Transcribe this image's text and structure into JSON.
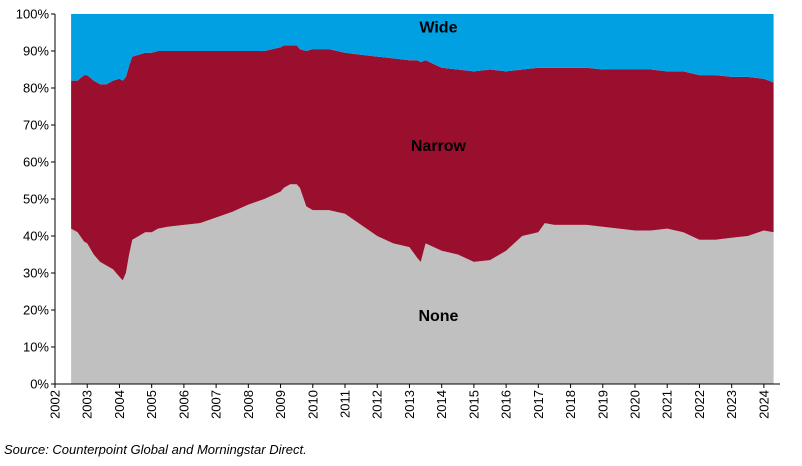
{
  "chart_data": {
    "type": "area",
    "stacked": true,
    "x": [
      2002.5,
      2002.7,
      2002.9,
      2003.0,
      2003.2,
      2003.4,
      2003.6,
      2003.8,
      2004.0,
      2004.1,
      2004.2,
      2004.3,
      2004.4,
      2004.6,
      2004.8,
      2005.0,
      2005.2,
      2005.5,
      2006.0,
      2006.5,
      2007.0,
      2007.5,
      2008.0,
      2008.5,
      2009.0,
      2009.1,
      2009.3,
      2009.5,
      2009.6,
      2009.8,
      2010.0,
      2010.5,
      2011.0,
      2011.5,
      2012.0,
      2012.5,
      2013.0,
      2013.25,
      2013.35,
      2013.5,
      2014.0,
      2014.5,
      2015.0,
      2015.5,
      2016.0,
      2016.5,
      2017.0,
      2017.2,
      2017.5,
      2018.0,
      2018.5,
      2019.0,
      2019.5,
      2020.0,
      2020.5,
      2021.0,
      2021.5,
      2022.0,
      2022.5,
      2023.0,
      2023.5,
      2024.0,
      2024.3
    ],
    "series": [
      {
        "name": "None",
        "values": [
          42,
          41,
          38.5,
          38,
          35,
          33,
          32,
          31,
          29,
          28,
          30,
          35,
          39,
          40,
          41,
          41,
          42,
          42.5,
          43,
          43.5,
          45,
          46.5,
          48.5,
          50,
          52,
          53,
          54,
          54,
          53,
          48,
          47,
          47,
          46,
          43,
          40,
          38,
          37,
          34,
          33,
          38,
          36,
          35,
          33,
          33.5,
          36,
          40,
          41,
          43.5,
          43,
          43,
          43,
          42.5,
          42,
          41.5,
          41.5,
          42,
          41,
          39,
          39,
          39.5,
          40,
          41.5,
          41
        ]
      },
      {
        "name": "Narrow",
        "values": [
          40,
          41,
          45,
          45.5,
          47,
          48,
          49,
          51,
          53.5,
          54,
          53,
          51,
          49.5,
          49,
          48.5,
          48.5,
          48,
          47.5,
          47,
          46.5,
          45,
          43.5,
          41.5,
          40,
          39,
          38.5,
          37.5,
          37.5,
          37.5,
          42,
          43.5,
          43.5,
          43.5,
          46,
          48.5,
          50,
          50.5,
          53.5,
          54,
          49.5,
          49.5,
          50,
          51.5,
          51.5,
          48.5,
          45,
          44.5,
          42,
          42.5,
          42.5,
          42.5,
          42.5,
          43,
          43.5,
          43.5,
          42.5,
          43.5,
          44.5,
          44.5,
          43.5,
          43,
          41,
          40.5
        ]
      },
      {
        "name": "Wide",
        "values": [
          18,
          18,
          16.5,
          16.5,
          18,
          19,
          19,
          18,
          17.5,
          18,
          17,
          14,
          11.5,
          11,
          10.5,
          10.5,
          10,
          10,
          10,
          10,
          10,
          10,
          10,
          10,
          9,
          8.5,
          8.5,
          8.5,
          9.5,
          10,
          9.5,
          9.5,
          10.5,
          11,
          11.5,
          12,
          12.5,
          12.5,
          13,
          12.5,
          14.5,
          15,
          15.5,
          15,
          15.5,
          15,
          14.5,
          14.5,
          14.5,
          14.5,
          14.5,
          15,
          15,
          15,
          15,
          15.5,
          15.5,
          16.5,
          16.5,
          17,
          17,
          17.5,
          18.5
        ]
      }
    ],
    "colors": {
      "None": "#c0c0c0",
      "Narrow": "#9b0f2e",
      "Wide": "#00a0e2"
    },
    "annotations": [
      {
        "text": "Wide",
        "series": "Wide",
        "x": 2013.9,
        "y": 95
      },
      {
        "text": "Narrow",
        "series": "Narrow",
        "x": 2013.9,
        "y": 63
      },
      {
        "text": "None",
        "series": "None",
        "x": 2013.9,
        "y": 17
      }
    ],
    "xlim": [
      2002.0,
      2024.5
    ],
    "ylim": [
      0,
      100
    ],
    "x_ticks": [
      2002,
      2003,
      2004,
      2005,
      2006,
      2007,
      2008,
      2009,
      2010,
      2011,
      2012,
      2013,
      2014,
      2015,
      2016,
      2017,
      2018,
      2019,
      2020,
      2021,
      2022,
      2023,
      2024
    ],
    "x_tick_labels": [
      "2002",
      "2003",
      "2004",
      "2005",
      "2006",
      "2007",
      "2008",
      "2009",
      "2010",
      "2011",
      "2012",
      "2013",
      "2014",
      "2015",
      "2016",
      "2017",
      "2018",
      "2019",
      "2020",
      "2021",
      "2022",
      "2023",
      "2024"
    ],
    "y_ticks": [
      0,
      10,
      20,
      30,
      40,
      50,
      60,
      70,
      80,
      90,
      100
    ],
    "y_tick_labels": [
      "0%",
      "10%",
      "20%",
      "30%",
      "40%",
      "50%",
      "60%",
      "70%",
      "80%",
      "90%",
      "100%"
    ],
    "legend": "none",
    "grid": false
  },
  "source": "Source: Counterpoint Global and Morningstar Direct."
}
